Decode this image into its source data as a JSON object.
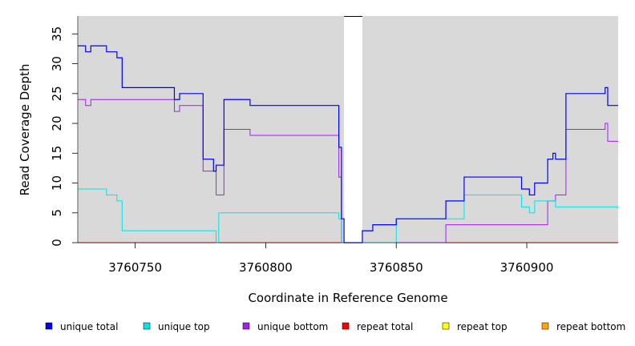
{
  "chart_data": {
    "type": "line",
    "xlabel": "Coordinate in Reference Genome",
    "ylabel": "Read Coverage Depth",
    "xlim": [
      3760728,
      3760935
    ],
    "ylim": [
      0,
      38
    ],
    "x_ticks": [
      3760750,
      3760800,
      3760850,
      3760900
    ],
    "x_tick_labels": [
      "3760750",
      "3760800",
      "3760850",
      "3760900"
    ],
    "y_ticks": [
      0,
      5,
      10,
      15,
      20,
      25,
      30,
      35
    ],
    "y_tick_labels": [
      "0",
      "5",
      "10",
      "15",
      "20",
      "25",
      "30",
      "35"
    ],
    "grid": false,
    "legend_position": "bottom",
    "background_color": "#d9d9d9",
    "gap_region": [
      3760830,
      3760837
    ],
    "series": [
      {
        "name": "unique total",
        "color": "#0000ff",
        "step": true,
        "x": [
          3760728,
          3760731,
          3760733,
          3760739,
          3760743,
          3760745,
          3760765,
          3760767,
          3760776,
          3760780,
          3760781,
          3760784,
          3760794,
          3760828,
          3760829,
          3760830,
          3760837,
          3760841,
          3760850,
          3760869,
          3760876,
          3760898,
          3760901,
          3760903,
          3760908,
          3760910,
          3760911,
          3760915,
          3760930,
          3760931,
          3760935
        ],
        "values": [
          33,
          32,
          33,
          32,
          31,
          26,
          24,
          25,
          14,
          12,
          13,
          24,
          23,
          16,
          4,
          0,
          2,
          3,
          4,
          7,
          11,
          9,
          8,
          10,
          14,
          15,
          14,
          25,
          26,
          23,
          23
        ]
      },
      {
        "name": "unique top",
        "color": "#00e5e5",
        "step": true,
        "x": [
          3760728,
          3760739,
          3760743,
          3760745,
          3760781,
          3760782,
          3760828,
          3760829,
          3760850,
          3760876,
          3760898,
          3760901,
          3760903,
          3760911,
          3760935
        ],
        "values": [
          9,
          8,
          7,
          2,
          0,
          5,
          4,
          0,
          4,
          8,
          6,
          5,
          7,
          6,
          6
        ]
      },
      {
        "name": "unique bottom",
        "color": "#a020f0",
        "step": true,
        "x": [
          3760728,
          3760731,
          3760733,
          3760765,
          3760767,
          3760776,
          3760781,
          3760784,
          3760794,
          3760828,
          3760829,
          3760869,
          3760908,
          3760911,
          3760915,
          3760930,
          3760931,
          3760935
        ],
        "values": [
          24,
          23,
          24,
          22,
          23,
          12,
          8,
          19,
          18,
          11,
          0,
          3,
          7,
          8,
          19,
          20,
          17,
          17
        ]
      },
      {
        "name": "repeat total",
        "color": "#ff0000",
        "step": true,
        "x": [
          3760728,
          3760935
        ],
        "values": [
          0,
          0
        ]
      },
      {
        "name": "repeat top",
        "color": "#ffff00",
        "step": true,
        "x": [
          3760728,
          3760935
        ],
        "values": [
          0,
          0
        ]
      },
      {
        "name": "repeat bottom",
        "color": "#ffa500",
        "step": true,
        "x": [
          3760728,
          3760935
        ],
        "values": [
          0,
          0
        ]
      }
    ]
  }
}
